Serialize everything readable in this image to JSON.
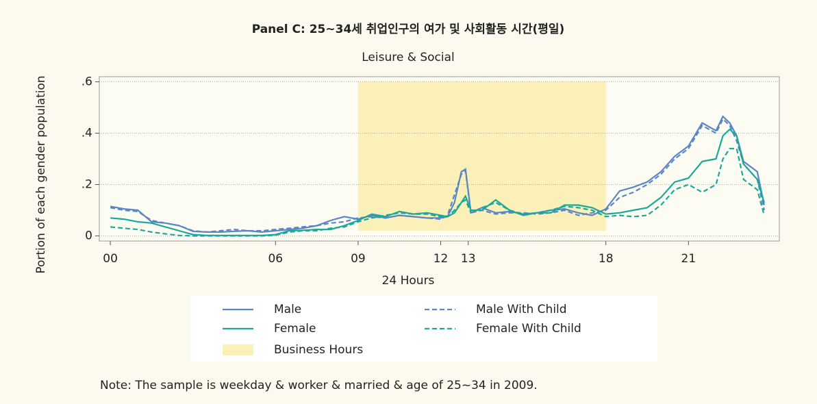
{
  "chart_data": {
    "type": "line",
    "title": "Panel C: 25~34세 취업인구의 여가 및 사회활동 시간(평일)",
    "subtitle": "Leisure & Social",
    "xlabel": "24 Hours",
    "ylabel": "Portion of each gender population",
    "note": "Note: The sample is weekday & worker & married & age of 25~34 in 2009.",
    "x": [
      0,
      0.5,
      1,
      1.5,
      2,
      2.5,
      3,
      3.5,
      4,
      4.5,
      5,
      5.5,
      6,
      6.5,
      7,
      7.5,
      8,
      8.5,
      9,
      9.5,
      10,
      10.5,
      11,
      11.5,
      12,
      12.25,
      12.5,
      12.75,
      12.9,
      13.1,
      13.5,
      14,
      14.5,
      15,
      15.5,
      16,
      16.5,
      17,
      17.5,
      18,
      18.5,
      19,
      19.5,
      20,
      20.5,
      21,
      21.5,
      22,
      22.25,
      22.5,
      22.75,
      23,
      23.5,
      23.75
    ],
    "series": [
      {
        "name": "Male",
        "color": "#5b86c5",
        "style": "solid",
        "values": [
          0.115,
          0.105,
          0.1,
          0.055,
          0.05,
          0.04,
          0.018,
          0.015,
          0.015,
          0.018,
          0.02,
          0.015,
          0.02,
          0.025,
          0.03,
          0.04,
          0.06,
          0.075,
          0.065,
          0.08,
          0.07,
          0.08,
          0.075,
          0.07,
          0.07,
          0.075,
          0.13,
          0.25,
          0.26,
          0.09,
          0.11,
          0.09,
          0.095,
          0.085,
          0.09,
          0.1,
          0.105,
          0.09,
          0.08,
          0.105,
          0.175,
          0.19,
          0.21,
          0.25,
          0.31,
          0.35,
          0.44,
          0.41,
          0.465,
          0.44,
          0.39,
          0.29,
          0.25,
          0.12
        ]
      },
      {
        "name": "Male With Child",
        "color": "#5b86c5",
        "style": "dashed",
        "values": [
          0.11,
          0.1,
          0.095,
          0.06,
          0.05,
          0.04,
          0.02,
          0.015,
          0.02,
          0.025,
          0.02,
          0.02,
          0.025,
          0.03,
          0.035,
          0.04,
          0.05,
          0.055,
          0.07,
          0.075,
          0.07,
          0.08,
          0.075,
          0.07,
          0.065,
          0.08,
          0.16,
          0.24,
          0.255,
          0.09,
          0.1,
          0.085,
          0.09,
          0.09,
          0.085,
          0.09,
          0.1,
          0.08,
          0.09,
          0.1,
          0.15,
          0.17,
          0.2,
          0.24,
          0.3,
          0.34,
          0.43,
          0.4,
          0.455,
          0.43,
          0.37,
          0.28,
          0.22,
          0.1
        ]
      },
      {
        "name": "Female",
        "color": "#1aa89a",
        "style": "solid",
        "values": [
          0.07,
          0.065,
          0.055,
          0.05,
          0.035,
          0.02,
          0.005,
          0.002,
          0.002,
          0.002,
          0.002,
          0.002,
          0.005,
          0.02,
          0.022,
          0.025,
          0.025,
          0.04,
          0.06,
          0.085,
          0.075,
          0.095,
          0.085,
          0.09,
          0.08,
          0.075,
          0.09,
          0.13,
          0.155,
          0.1,
          0.1,
          0.14,
          0.1,
          0.08,
          0.09,
          0.09,
          0.12,
          0.12,
          0.11,
          0.085,
          0.09,
          0.1,
          0.11,
          0.15,
          0.21,
          0.225,
          0.29,
          0.3,
          0.39,
          0.415,
          0.39,
          0.28,
          0.22,
          0.13
        ]
      },
      {
        "name": "Female With Child",
        "color": "#1aa89a",
        "style": "dashed",
        "values": [
          0.035,
          0.03,
          0.025,
          0.015,
          0.008,
          0.002,
          0,
          0,
          0,
          0,
          0,
          0,
          0.003,
          0.015,
          0.02,
          0.02,
          0.03,
          0.035,
          0.055,
          0.07,
          0.08,
          0.09,
          0.085,
          0.085,
          0.075,
          0.075,
          0.1,
          0.13,
          0.14,
          0.09,
          0.11,
          0.13,
          0.1,
          0.085,
          0.09,
          0.1,
          0.115,
          0.11,
          0.1,
          0.075,
          0.08,
          0.075,
          0.08,
          0.12,
          0.18,
          0.2,
          0.17,
          0.2,
          0.3,
          0.34,
          0.34,
          0.22,
          0.18,
          0.08
        ]
      }
    ],
    "business_hours": {
      "name": "Business Hours",
      "x": [
        9,
        18
      ],
      "y": [
        0.02,
        0.6
      ],
      "color": "#fbf0b8"
    },
    "xlim": [
      -0.4,
      24.3
    ],
    "ylim": [
      -0.02,
      0.62
    ],
    "xticks": [
      {
        "value": 0,
        "label": "00"
      },
      {
        "value": 6,
        "label": "06"
      },
      {
        "value": 9,
        "label": "09"
      },
      12,
      13,
      18,
      21
    ],
    "yticks": [
      0,
      {
        "value": 0.2,
        "label": ".2"
      },
      {
        "value": 0.4,
        "label": ".4"
      },
      {
        "value": 0.6,
        "label": ".6"
      }
    ],
    "grid": true
  }
}
